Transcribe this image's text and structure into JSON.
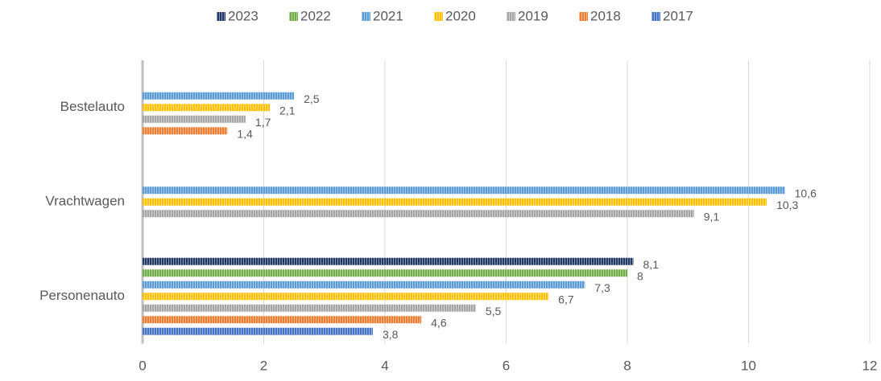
{
  "chart_data": {
    "type": "hbar",
    "categories": [
      "Bestelauto",
      "Vrachtwagen",
      "Personenauto"
    ],
    "series": [
      {
        "name": "2023",
        "color": "#1f3864",
        "values": [
          null,
          null,
          8.1
        ],
        "value_labels": [
          null,
          null,
          "8,1"
        ]
      },
      {
        "name": "2022",
        "color": "#70ad47",
        "values": [
          null,
          null,
          8
        ],
        "value_labels": [
          null,
          null,
          "8"
        ]
      },
      {
        "name": "2021",
        "color": "#5b9bd5",
        "values": [
          2.5,
          10.6,
          7.3
        ],
        "value_labels": [
          "2,5",
          "10,6",
          "7,3"
        ]
      },
      {
        "name": "2020",
        "color": "#ffc000",
        "values": [
          2.1,
          10.3,
          6.7
        ],
        "value_labels": [
          "2,1",
          "10,3",
          "6,7"
        ]
      },
      {
        "name": "2019",
        "color": "#a5a5a5",
        "values": [
          1.7,
          9.1,
          5.5
        ],
        "value_labels": [
          "1,7",
          "9,1",
          "5,5"
        ]
      },
      {
        "name": "2018",
        "color": "#ed7d31",
        "values": [
          1.4,
          null,
          4.6
        ],
        "value_labels": [
          "1,4",
          null,
          "4,6"
        ]
      },
      {
        "name": "2017",
        "color": "#4472c4",
        "values": [
          null,
          null,
          3.8
        ],
        "value_labels": [
          null,
          null,
          "3,8"
        ]
      }
    ],
    "xlim": [
      0,
      12
    ],
    "xticks": [
      0,
      2,
      4,
      6,
      8,
      10,
      12
    ],
    "grid": true,
    "legend": "top"
  }
}
